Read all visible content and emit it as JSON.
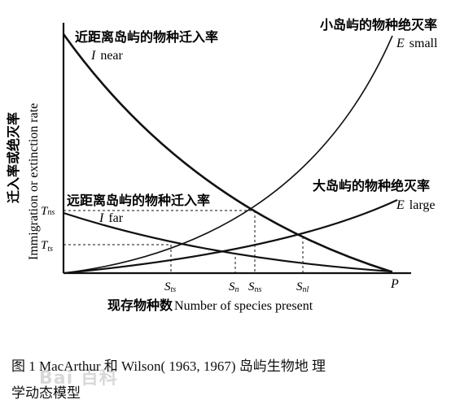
{
  "y_axis_label_cn": "迁入率或绝灭率",
  "y_axis_label_en": "Immigration or extinction rate",
  "x_axis_label_cn": "现存物种数",
  "x_axis_label_en": "Number of species present",
  "curves": {
    "i_near": {
      "label_cn": "近距离岛屿的物种迁入率",
      "label_sym": "I",
      "label_en": "near"
    },
    "i_far": {
      "label_cn": "远距离岛屿的物种迁入率",
      "label_sym": "I",
      "label_en": "far"
    },
    "e_small": {
      "label_cn": "小岛屿的物种绝灭率",
      "label_sym": "E",
      "label_en": "small"
    },
    "e_large": {
      "label_cn": "大岛屿的物种绝灭率",
      "label_sym": "E",
      "label_en": "large"
    }
  },
  "y_ticks": {
    "tns": {
      "main": "T",
      "sub": "ns"
    },
    "tts": {
      "main": "T",
      "sub": "ts"
    }
  },
  "x_ticks": {
    "sts": {
      "main": "S",
      "sub": "ts"
    },
    "sn": {
      "main": "S",
      "sub": "n"
    },
    "sns": {
      "main": "S",
      "sub": "ns"
    },
    "snl": {
      "main": "S",
      "sub": "nl"
    },
    "p": {
      "main": "P"
    }
  },
  "caption": {
    "line1": "图 1   MacArthur 和 Wilson( 1963, 1967) 岛屿生物地 理",
    "line2": "学动态模型"
  },
  "watermark": "Bai 百科",
  "colors": {
    "ink": "#111111",
    "watermark": "#d8d8d8"
  }
}
